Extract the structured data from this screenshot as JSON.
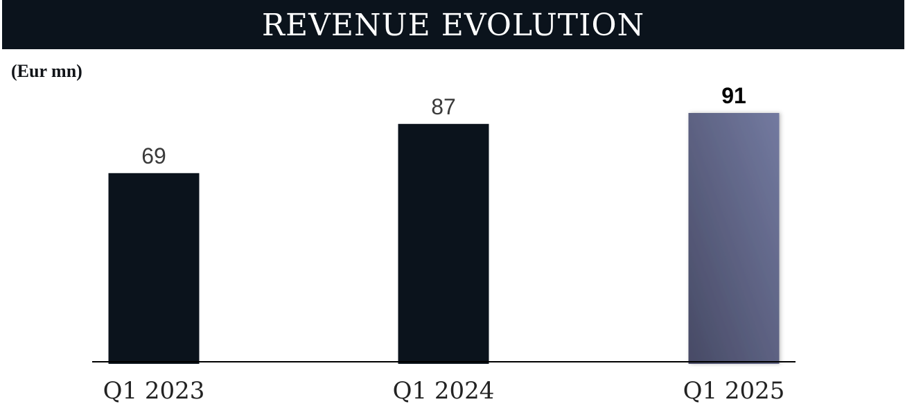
{
  "header": {
    "title": "REVENUE EVOLUTION",
    "unit_label": "(Eur mn)"
  },
  "chart_data": {
    "type": "bar",
    "title": "REVENUE EVOLUTION",
    "ylabel": "(Eur mn)",
    "xlabel": "",
    "categories": [
      "Q1 2023",
      "Q1 2024",
      "Q1 2025"
    ],
    "values": [
      69,
      87,
      91
    ],
    "value_labels": [
      "69",
      "87",
      "91"
    ],
    "highlight_index": 2,
    "ylim": [
      0,
      91
    ],
    "grid": false,
    "legend": "none",
    "colors": {
      "bar": "#0b131c",
      "highlight_top": "#737aa0",
      "highlight_bottom": "#474a65",
      "axis": "#000000",
      "value_text": "#3a3a3a",
      "highlight_value_text": "#000000",
      "category_text": "#222222"
    }
  }
}
